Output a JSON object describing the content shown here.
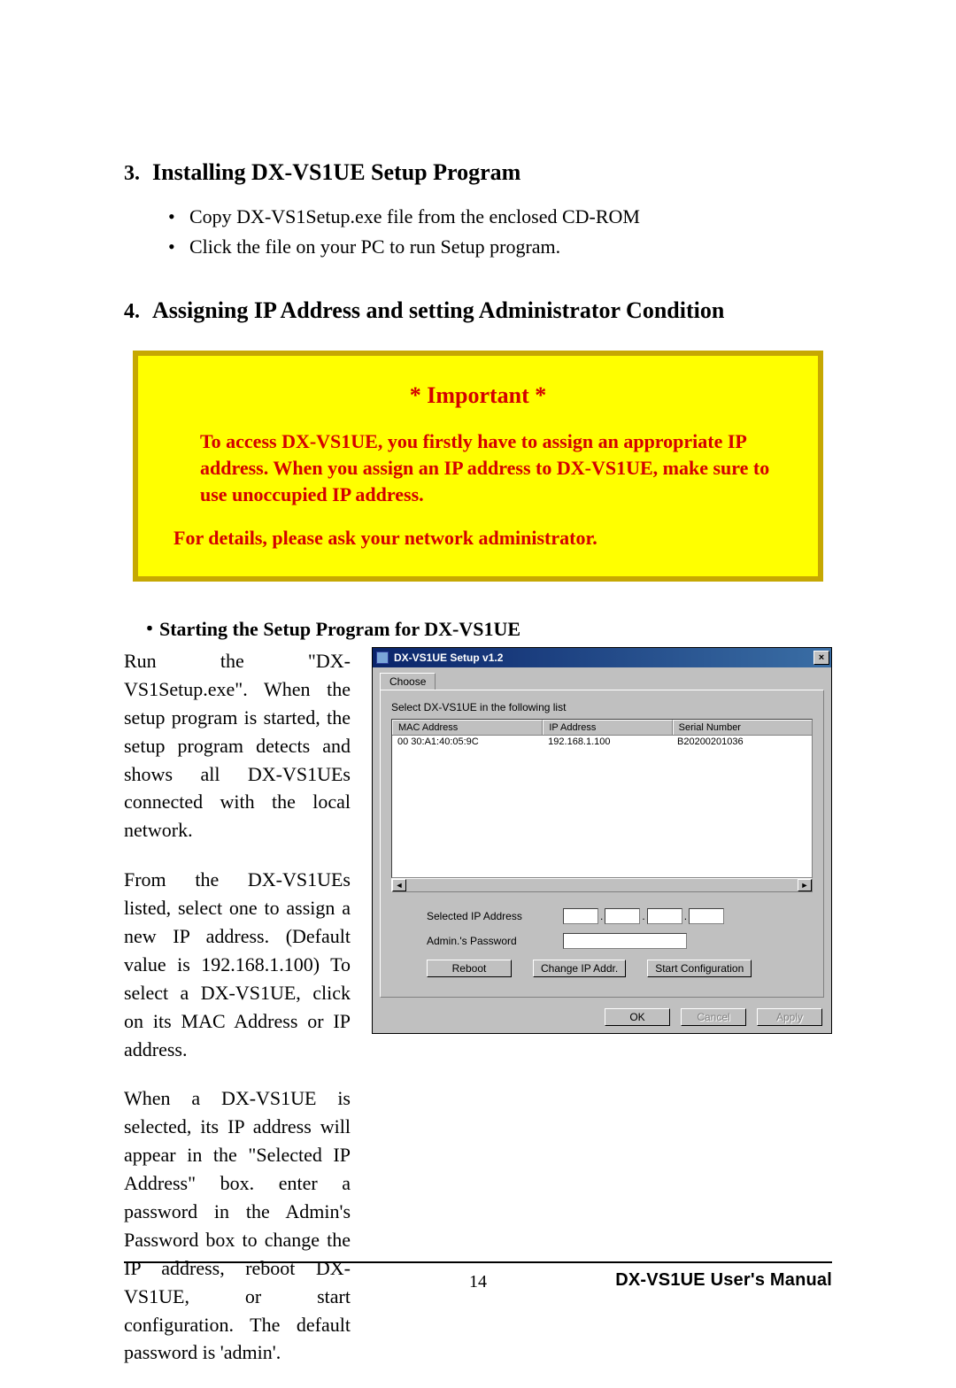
{
  "section3": {
    "number": "3.",
    "title": "Installing DX-VS1UE Setup Program",
    "bullets": [
      "Copy DX-VS1Setup.exe file from the enclosed CD-ROM",
      "Click the file on your PC to run Setup program."
    ]
  },
  "section4": {
    "number": "4.",
    "title": "Assigning IP Address and setting Administrator Condition"
  },
  "important": {
    "title": "* Important *",
    "p1": "To access DX-VS1UE, you firstly have to assign an appropriate IP address. When you assign an IP address to DX-VS1UE, make sure to use unoccupied IP address.",
    "p2": "For details, please ask your network administrator.",
    "border_color": "#c6a802",
    "bg_color": "#ffff00",
    "text_color": "#d40000"
  },
  "sub_start": "・Starting the Setup Program for DX-VS1UE",
  "body": {
    "p1": "Run the \"DX-VS1Setup.exe\". When the setup program is started, the setup program detects and shows all DX-VS1UEs connected with the local network.",
    "p2": "From the DX-VS1UEs listed, select one to assign a new IP address. (Default value is 192.168.1.100) To select a DX-VS1UE, click on its MAC Address or IP address.",
    "p3": "When a DX-VS1UE is selected, its IP address will appear in the \"Selected IP Address\" box. enter a password in the Admin's Password box to change the IP address, reboot DX-VS1UE, or start configuration. The default password is 'admin'."
  },
  "window": {
    "title": "DX-VS1UE  Setup v1.2",
    "close_glyph": "×",
    "tab_label": "Choose",
    "list_label": "Select  DX-VS1UE  in the following list",
    "columns": {
      "mac": "MAC Address",
      "ip": "IP Address",
      "sn": "Serial Number"
    },
    "row": {
      "mac": "00 30:A1:40:05:9C",
      "ip": "192.168.1.100",
      "sn": "B20200201036"
    },
    "scroll_left": "◄",
    "scroll_right": "►",
    "selected_ip_label": "Selected IP Address",
    "ip_octets": [
      "",
      "",
      "",
      ""
    ],
    "password_label": "Admin.'s Password",
    "password_value": "",
    "btn_reboot": "Reboot",
    "btn_change": "Change IP Addr.",
    "btn_start": "Start Configuration",
    "btn_ok": "OK",
    "btn_cancel": "Cancel",
    "btn_apply": "Apply",
    "colors": {
      "titlebar_from": "#0a246a",
      "titlebar_to": "#3a6ea5",
      "face": "#c0c0c0",
      "white": "#ffffff",
      "shadow": "#808080"
    }
  },
  "footer": {
    "page_num": "14",
    "manual": "DX-VS1UE User's Manual"
  }
}
